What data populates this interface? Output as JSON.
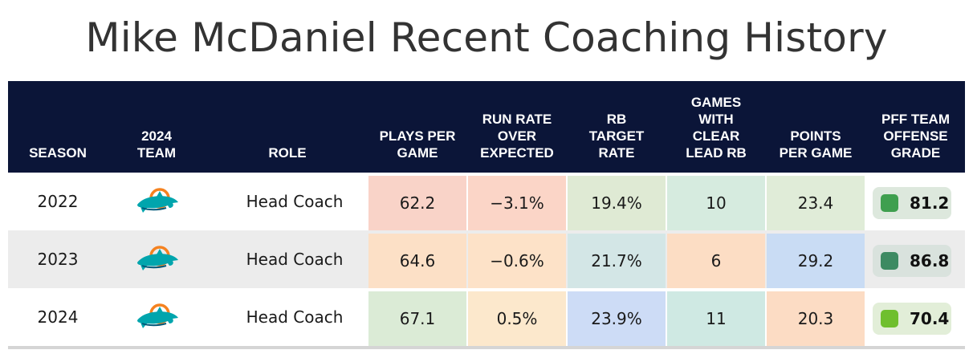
{
  "title": "Mike McDaniel Recent Coaching History",
  "columns": {
    "season": "SEASON",
    "team": "2024\nTEAM",
    "role": "ROLE",
    "plays": "PLAYS PER\nGAME",
    "rroe": "RUN RATE\nOVER\nEXPECTED",
    "rb_target": "RB\nTARGET\nRATE",
    "lead_rb": "GAMES\nWITH\nCLEAR\nLEAD RB",
    "ppg": "POINTS\nPER GAME",
    "pff": "PFF TEAM\nOFFENSE\nGRADE"
  },
  "rows": [
    {
      "season": "2022",
      "team_icon": "miami-dolphins-logo-icon",
      "role": "Head Coach",
      "plays": "62.2",
      "rroe": "−3.1%",
      "rb_target": "19.4%",
      "lead_rb": "10",
      "ppg": "23.4",
      "pff": "81.2",
      "colors": {
        "plays": "#f9d3c8",
        "rroe": "#fbd5c7",
        "rb_target": "#dfead4",
        "lead_rb": "#d6ebdf",
        "ppg": "#e0ecd8",
        "pff_bg": "#dde8dd",
        "pff_sq": "#3f9f4f"
      }
    },
    {
      "season": "2023",
      "team_icon": "miami-dolphins-logo-icon",
      "role": "Head Coach",
      "plays": "64.6",
      "rroe": "−0.6%",
      "rb_target": "21.7%",
      "lead_rb": "6",
      "ppg": "29.2",
      "pff": "86.8",
      "colors": {
        "plays": "#fce0c6",
        "rroe": "#fde2c8",
        "rb_target": "#d3e6e6",
        "lead_rb": "#fcddc4",
        "ppg": "#c9dcf4",
        "pff_bg": "#d9e2dd",
        "pff_sq": "#3d8a62"
      }
    },
    {
      "season": "2024",
      "team_icon": "miami-dolphins-logo-icon",
      "role": "Head Coach",
      "plays": "67.1",
      "rroe": "0.5%",
      "rb_target": "23.9%",
      "lead_rb": "11",
      "ppg": "20.3",
      "pff": "70.4",
      "colors": {
        "plays": "#dbebd6",
        "rroe": "#fce8cc",
        "rb_target": "#cddcf6",
        "lead_rb": "#cfe9e3",
        "ppg": "#fcdcc4",
        "pff_bg": "#e2eed8",
        "pff_sq": "#6fbf2e"
      }
    }
  ]
}
